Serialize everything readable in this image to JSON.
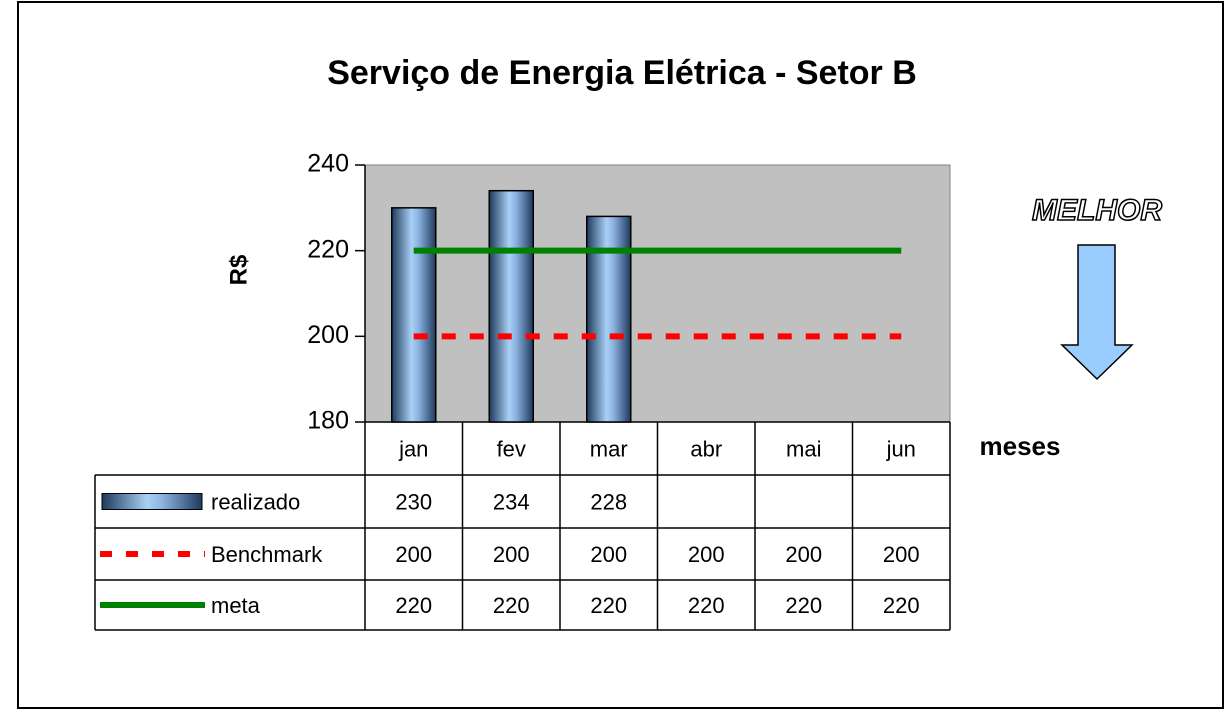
{
  "chart_data": {
    "type": "bar",
    "title": "Serviço de Energia Elétrica - Setor B",
    "y_label": "R$",
    "x_label": "meses",
    "annotation": "MELHOR",
    "categories": [
      "jan",
      "fev",
      "mar",
      "abr",
      "mai",
      "jun"
    ],
    "series": [
      {
        "name": "realizado",
        "type": "bar",
        "color": "#8db4e2",
        "values": [
          230,
          234,
          228,
          null,
          null,
          null
        ]
      },
      {
        "name": "Benchmark",
        "type": "line",
        "dashed": true,
        "color": "#ff0000",
        "values": [
          200,
          200,
          200,
          200,
          200,
          200
        ]
      },
      {
        "name": "meta",
        "type": "line",
        "color": "#008000",
        "values": [
          220,
          220,
          220,
          220,
          220,
          220
        ]
      }
    ],
    "ylim": [
      180,
      240
    ],
    "yticks": [
      180,
      200,
      220,
      240
    ],
    "grid": false
  }
}
